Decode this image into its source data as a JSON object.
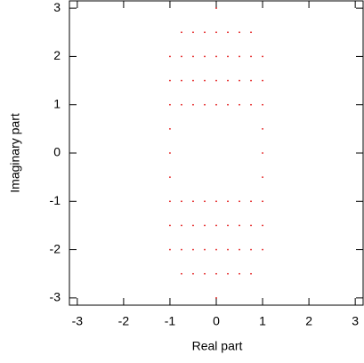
{
  "chart_data": {
    "type": "scatter",
    "x_label": "Real part",
    "y_label": "Imaginary part",
    "color": "#e00000",
    "x": [
      -1,
      -1,
      -1,
      -1,
      -1,
      -1,
      -1,
      -1,
      -1,
      -0.75,
      -0.75,
      -0.75,
      -0.75,
      -0.75,
      -0.75,
      -0.75,
      -0.75,
      -0.5,
      -0.5,
      -0.5,
      -0.5,
      -0.5,
      -0.5,
      -0.5,
      -0.5,
      -0.25,
      -0.25,
      -0.25,
      -0.25,
      -0.25,
      -0.25,
      -0.25,
      -0.25,
      0,
      0,
      0,
      0,
      0,
      0,
      0,
      0,
      0,
      0,
      0.25,
      0.25,
      0.25,
      0.25,
      0.25,
      0.25,
      0.25,
      0.25,
      0.5,
      0.5,
      0.5,
      0.5,
      0.5,
      0.5,
      0.5,
      0.5,
      0.75,
      0.75,
      0.75,
      0.75,
      0.75,
      0.75,
      0.75,
      0.75,
      1,
      1,
      1,
      1,
      1,
      1,
      1,
      1,
      1
    ],
    "values": [
      -2,
      -1.5,
      -1,
      -0.5,
      0,
      0.5,
      1,
      1.5,
      2,
      -2.5,
      -2,
      -1.5,
      -1,
      1,
      1.5,
      2,
      2.5,
      -2.5,
      -2,
      -1.5,
      -1,
      1,
      1.5,
      2,
      2.5,
      -2.5,
      -2,
      -1.5,
      -1,
      1,
      1.5,
      2,
      2.5,
      -3,
      -2.5,
      -2,
      -1.5,
      -1,
      1,
      1.5,
      2,
      2.5,
      3,
      -2.5,
      -2,
      -1.5,
      -1,
      1,
      1.5,
      2,
      2.5,
      -2.5,
      -2,
      -1.5,
      -1,
      1,
      1.5,
      2,
      2.5,
      -2.5,
      -2,
      -1.5,
      -1,
      1,
      1.5,
      2,
      2.5,
      -2,
      -1.5,
      -1,
      -0.5,
      0,
      0.5,
      1,
      1.5,
      2
    ],
    "xlim": [
      -3.17,
      3.17
    ],
    "ylim": [
      -3.15,
      3.15
    ],
    "xticks": [
      -3,
      -2,
      -1,
      0,
      1,
      2,
      3
    ],
    "yticks": [
      -3,
      -2,
      -1,
      0,
      1,
      2,
      3
    ]
  }
}
